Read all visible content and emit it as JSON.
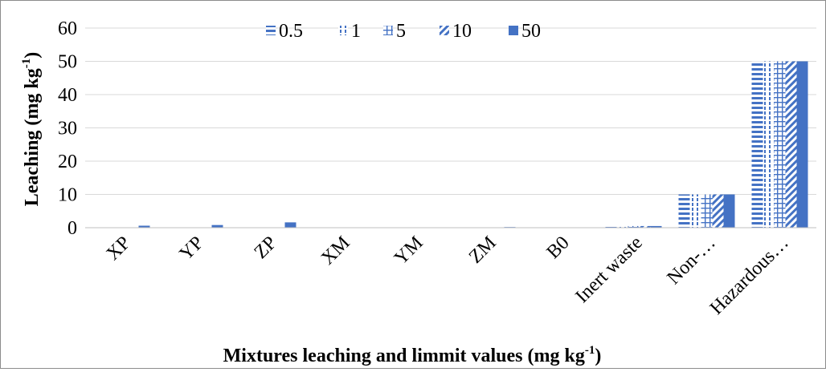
{
  "chart_data": {
    "type": "bar",
    "xlabel": "Mixtures leaching and limmit values  (mg kg",
    "xlabel_sup": "-1",
    "xlabel_end": ")",
    "ylabel": "Leaching  (mg kg",
    "ylabel_sup": "-1",
    "ylabel_end": ")",
    "ylim": [
      0,
      60
    ],
    "yticks": [
      "0",
      "10",
      "20",
      "30",
      "40",
      "50",
      "60"
    ],
    "legend_position": "top",
    "categories": [
      "XP",
      "YP",
      "ZP",
      "XM",
      "YM",
      "ZM",
      "B0",
      "Inert waste",
      "Non-…",
      "Hazardous…"
    ],
    "series": [
      {
        "name": "0.5",
        "pattern": "horizontal-stripes",
        "color": "#4472C4",
        "values": [
          0.0,
          0.0,
          0.0,
          0.0,
          0.0,
          0.0,
          0.0,
          0.5,
          10,
          50
        ]
      },
      {
        "name": "1",
        "pattern": "vertical-dashes",
        "color": "#4472C4",
        "values": [
          0.0,
          0.0,
          0.0,
          0.0,
          0.0,
          0.0,
          0.0,
          0.5,
          10,
          50
        ]
      },
      {
        "name": "5",
        "pattern": "grid",
        "color": "#4472C4",
        "values": [
          0.0,
          0.0,
          0.0,
          0.0,
          0.0,
          0.0,
          0.0,
          0.5,
          10,
          50
        ]
      },
      {
        "name": "10",
        "pattern": "diagonal",
        "color": "#4472C4",
        "values": [
          0.0,
          0.0,
          0.0,
          0.0,
          0.0,
          0.0,
          0.0,
          0.5,
          10,
          50
        ]
      },
      {
        "name": "50",
        "pattern": "solid",
        "color": "#4472C4",
        "values": [
          0.6,
          0.8,
          1.6,
          0.0,
          0.1,
          0.2,
          0.0,
          0.5,
          10,
          50
        ]
      }
    ]
  }
}
